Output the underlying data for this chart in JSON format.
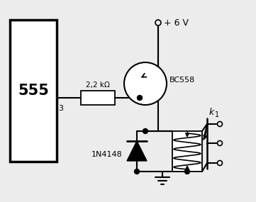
{
  "bg_color": "#ececec",
  "line_color": "#000000",
  "fig_width": 3.61,
  "fig_height": 2.85,
  "dpi": 100,
  "resistor_label": "2,2 kΩ",
  "transistor_label": "BC558",
  "diode_label": "1N4148",
  "relay_label": "k",
  "relay_label2": "1",
  "supply_label": "+ 6 V",
  "ic_label": "555",
  "pin_label": "3"
}
